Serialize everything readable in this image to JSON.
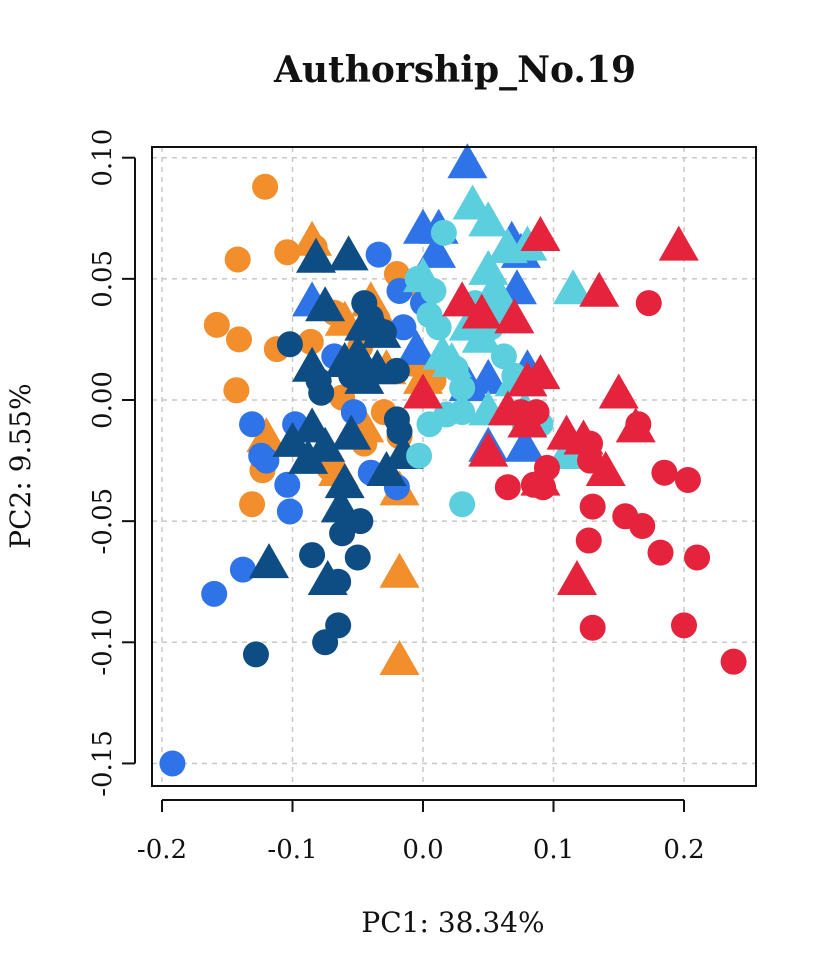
{
  "chart_data": {
    "type": "scatter",
    "title": "Authorship_No.19",
    "xlabel": "PC1: 38.34%",
    "ylabel": "PC2: 9.55%",
    "xlim": [
      -0.2,
      0.25
    ],
    "ylim": [
      -0.15,
      0.1
    ],
    "x_ticks": [
      -0.2,
      -0.1,
      0.0,
      0.1,
      0.2
    ],
    "x_tick_labels": [
      "-0.2",
      "-0.1",
      "0.0",
      "0.1",
      "0.2"
    ],
    "y_ticks": [
      -0.15,
      -0.1,
      -0.05,
      0.0,
      0.05,
      0.1
    ],
    "y_tick_labels": [
      "-0.15",
      "-0.10",
      "-0.05",
      "0.00",
      "0.05",
      "0.10"
    ],
    "grid": true,
    "series": [
      {
        "color": "#F28E2B",
        "marker": "circle",
        "points": [
          [
            -0.121,
            0.088
          ],
          [
            -0.104,
            0.061
          ],
          [
            -0.142,
            0.058
          ],
          [
            -0.083,
            0.063
          ],
          [
            -0.158,
            0.031
          ],
          [
            -0.141,
            0.025
          ],
          [
            -0.112,
            0.021
          ],
          [
            -0.143,
            0.004
          ],
          [
            -0.086,
            0.024
          ],
          [
            -0.123,
            -0.029
          ],
          [
            -0.131,
            -0.043
          ],
          [
            -0.068,
            0.036
          ],
          [
            -0.048,
            0.022
          ],
          [
            -0.033,
            0.031
          ],
          [
            -0.02,
            0.052
          ],
          [
            -0.012,
            0.048
          ],
          [
            -0.062,
            0.001
          ],
          [
            -0.03,
            -0.005
          ],
          [
            -0.055,
            0.012
          ],
          [
            -0.045,
            -0.018
          ],
          [
            -0.008,
            0.015
          ],
          [
            0.008,
            0.008
          ],
          [
            -0.072,
            -0.028
          ],
          [
            -0.018,
            -0.015
          ]
        ]
      },
      {
        "color": "#F28E2B",
        "marker": "triangle",
        "points": [
          [
            -0.085,
            0.065
          ],
          [
            -0.06,
            0.032
          ],
          [
            -0.04,
            0.04
          ],
          [
            -0.12,
            -0.016
          ],
          [
            -0.065,
            -0.03
          ],
          [
            -0.045,
            -0.012
          ],
          [
            -0.018,
            -0.038
          ],
          [
            -0.018,
            -0.072
          ],
          [
            -0.018,
            -0.108
          ],
          [
            -0.028,
            0.012
          ],
          [
            0.0,
            0.008
          ]
        ]
      },
      {
        "color": "#2E73E8",
        "marker": "circle",
        "points": [
          [
            -0.192,
            -0.15
          ],
          [
            -0.16,
            -0.08
          ],
          [
            -0.138,
            -0.07
          ],
          [
            -0.131,
            -0.01
          ],
          [
            -0.124,
            -0.023
          ],
          [
            -0.104,
            -0.035
          ],
          [
            -0.102,
            -0.046
          ],
          [
            -0.098,
            -0.01
          ],
          [
            -0.053,
            -0.005
          ],
          [
            -0.034,
            0.06
          ],
          [
            -0.018,
            0.045
          ],
          [
            -0.068,
            0.018
          ],
          [
            -0.02,
            -0.036
          ],
          [
            -0.015,
            0.03
          ],
          [
            -0.12,
            -0.025
          ],
          [
            -0.04,
            -0.03
          ],
          [
            0.0,
            0.04
          ]
        ]
      },
      {
        "color": "#2E73E8",
        "marker": "triangle",
        "points": [
          [
            0.034,
            0.097
          ],
          [
            0.0,
            0.07
          ],
          [
            -0.085,
            0.04
          ],
          [
            0.012,
            0.07
          ],
          [
            0.068,
            0.065
          ],
          [
            0.072,
            0.045
          ],
          [
            0.05,
            0.008
          ],
          [
            0.08,
            0.012
          ],
          [
            0.035,
            0.005
          ],
          [
            0.078,
            -0.02
          ],
          [
            0.05,
            -0.02
          ],
          [
            -0.005,
            0.02
          ],
          [
            0.01,
            0.06
          ],
          [
            0.075,
            0.06
          ]
        ]
      },
      {
        "color": "#0E4D83",
        "marker": "circle",
        "points": [
          [
            -0.102,
            0.023
          ],
          [
            -0.045,
            0.04
          ],
          [
            -0.04,
            0.034
          ],
          [
            -0.03,
            0.028
          ],
          [
            -0.02,
            0.012
          ],
          [
            -0.078,
            0.003
          ],
          [
            -0.055,
            0.01
          ],
          [
            -0.02,
            -0.008
          ],
          [
            -0.018,
            -0.013
          ],
          [
            -0.085,
            -0.064
          ],
          [
            -0.062,
            -0.055
          ],
          [
            -0.048,
            -0.05
          ],
          [
            -0.05,
            -0.065
          ],
          [
            -0.065,
            -0.075
          ],
          [
            -0.065,
            -0.093
          ],
          [
            -0.075,
            -0.1
          ],
          [
            -0.128,
            -0.105
          ],
          [
            -0.08,
            0.008
          ]
        ]
      },
      {
        "color": "#0E4D83",
        "marker": "triangle",
        "points": [
          [
            -0.082,
            0.058
          ],
          [
            -0.057,
            0.059
          ],
          [
            -0.075,
            0.038
          ],
          [
            -0.045,
            0.03
          ],
          [
            -0.032,
            0.027
          ],
          [
            -0.085,
            0.013
          ],
          [
            -0.06,
            0.015
          ],
          [
            -0.05,
            0.018
          ],
          [
            -0.035,
            0.012
          ],
          [
            -0.085,
            -0.012
          ],
          [
            -0.1,
            -0.018
          ],
          [
            -0.088,
            -0.025
          ],
          [
            -0.075,
            -0.02
          ],
          [
            -0.055,
            -0.015
          ],
          [
            -0.028,
            -0.03
          ],
          [
            -0.015,
            -0.023
          ],
          [
            -0.06,
            -0.035
          ],
          [
            -0.063,
            -0.045
          ],
          [
            -0.118,
            -0.068
          ],
          [
            -0.073,
            -0.075
          ],
          [
            -0.045,
            0.008
          ]
        ]
      },
      {
        "color": "#5CCFDE",
        "marker": "circle",
        "points": [
          [
            0.016,
            0.069
          ],
          [
            0.008,
            0.045
          ],
          [
            -0.004,
            0.05
          ],
          [
            0.005,
            0.035
          ],
          [
            0.012,
            0.03
          ],
          [
            0.03,
            0.005
          ],
          [
            0.025,
            0.013
          ],
          [
            0.005,
            -0.01
          ],
          [
            0.018,
            -0.006
          ],
          [
            0.03,
            -0.005
          ],
          [
            0.062,
            0.018
          ],
          [
            0.07,
            0.01
          ],
          [
            0.052,
            0.03
          ],
          [
            0.04,
            0.04
          ],
          [
            0.09,
            -0.01
          ],
          [
            0.075,
            -0.005
          ],
          [
            0.078,
            -0.01
          ],
          [
            0.03,
            -0.043
          ],
          [
            -0.003,
            -0.023
          ],
          [
            0.06,
            0.035
          ]
        ]
      },
      {
        "color": "#5CCFDE",
        "marker": "triangle",
        "points": [
          [
            0.038,
            0.08
          ],
          [
            0.05,
            0.073
          ],
          [
            0.0,
            0.05
          ],
          [
            0.05,
            0.053
          ],
          [
            0.055,
            0.045
          ],
          [
            0.06,
            0.04
          ],
          [
            0.035,
            0.03
          ],
          [
            0.045,
            0.025
          ],
          [
            0.015,
            0.018
          ],
          [
            0.022,
            0.015
          ],
          [
            0.07,
            0.007
          ],
          [
            0.05,
            -0.005
          ],
          [
            0.078,
            -0.005
          ],
          [
            0.115,
            0.045
          ],
          [
            0.11,
            -0.023
          ],
          [
            0.065,
            0.062
          ],
          [
            0.08,
            0.063
          ]
        ]
      },
      {
        "color": "#E5233D",
        "marker": "circle",
        "points": [
          [
            0.173,
            0.04
          ],
          [
            0.238,
            -0.108
          ],
          [
            0.2,
            -0.093
          ],
          [
            0.21,
            -0.065
          ],
          [
            0.182,
            -0.063
          ],
          [
            0.168,
            -0.052
          ],
          [
            0.155,
            -0.048
          ],
          [
            0.13,
            -0.044
          ],
          [
            0.127,
            -0.058
          ],
          [
            0.13,
            -0.094
          ],
          [
            0.185,
            -0.03
          ],
          [
            0.203,
            -0.033
          ],
          [
            0.165,
            -0.01
          ],
          [
            0.128,
            -0.018
          ],
          [
            0.128,
            -0.025
          ],
          [
            0.095,
            -0.028
          ],
          [
            0.085,
            -0.035
          ],
          [
            0.092,
            -0.036
          ],
          [
            0.065,
            -0.036
          ],
          [
            0.075,
            -0.005
          ],
          [
            0.087,
            -0.005
          ]
        ]
      },
      {
        "color": "#E5233D",
        "marker": "triangle",
        "points": [
          [
            0.09,
            0.067
          ],
          [
            0.196,
            0.063
          ],
          [
            0.135,
            0.044
          ],
          [
            0.03,
            0.04
          ],
          [
            0.045,
            0.035
          ],
          [
            0.07,
            0.033
          ],
          [
            0.09,
            0.01
          ],
          [
            0.08,
            0.007
          ],
          [
            0.0,
            0.002
          ],
          [
            0.065,
            -0.005
          ],
          [
            0.15,
            0.002
          ],
          [
            0.163,
            -0.012
          ],
          [
            0.11,
            -0.015
          ],
          [
            0.123,
            -0.017
          ],
          [
            0.14,
            -0.03
          ],
          [
            0.09,
            -0.034
          ],
          [
            0.05,
            -0.022
          ],
          [
            0.118,
            -0.075
          ],
          [
            0.08,
            -0.01
          ]
        ]
      }
    ]
  }
}
